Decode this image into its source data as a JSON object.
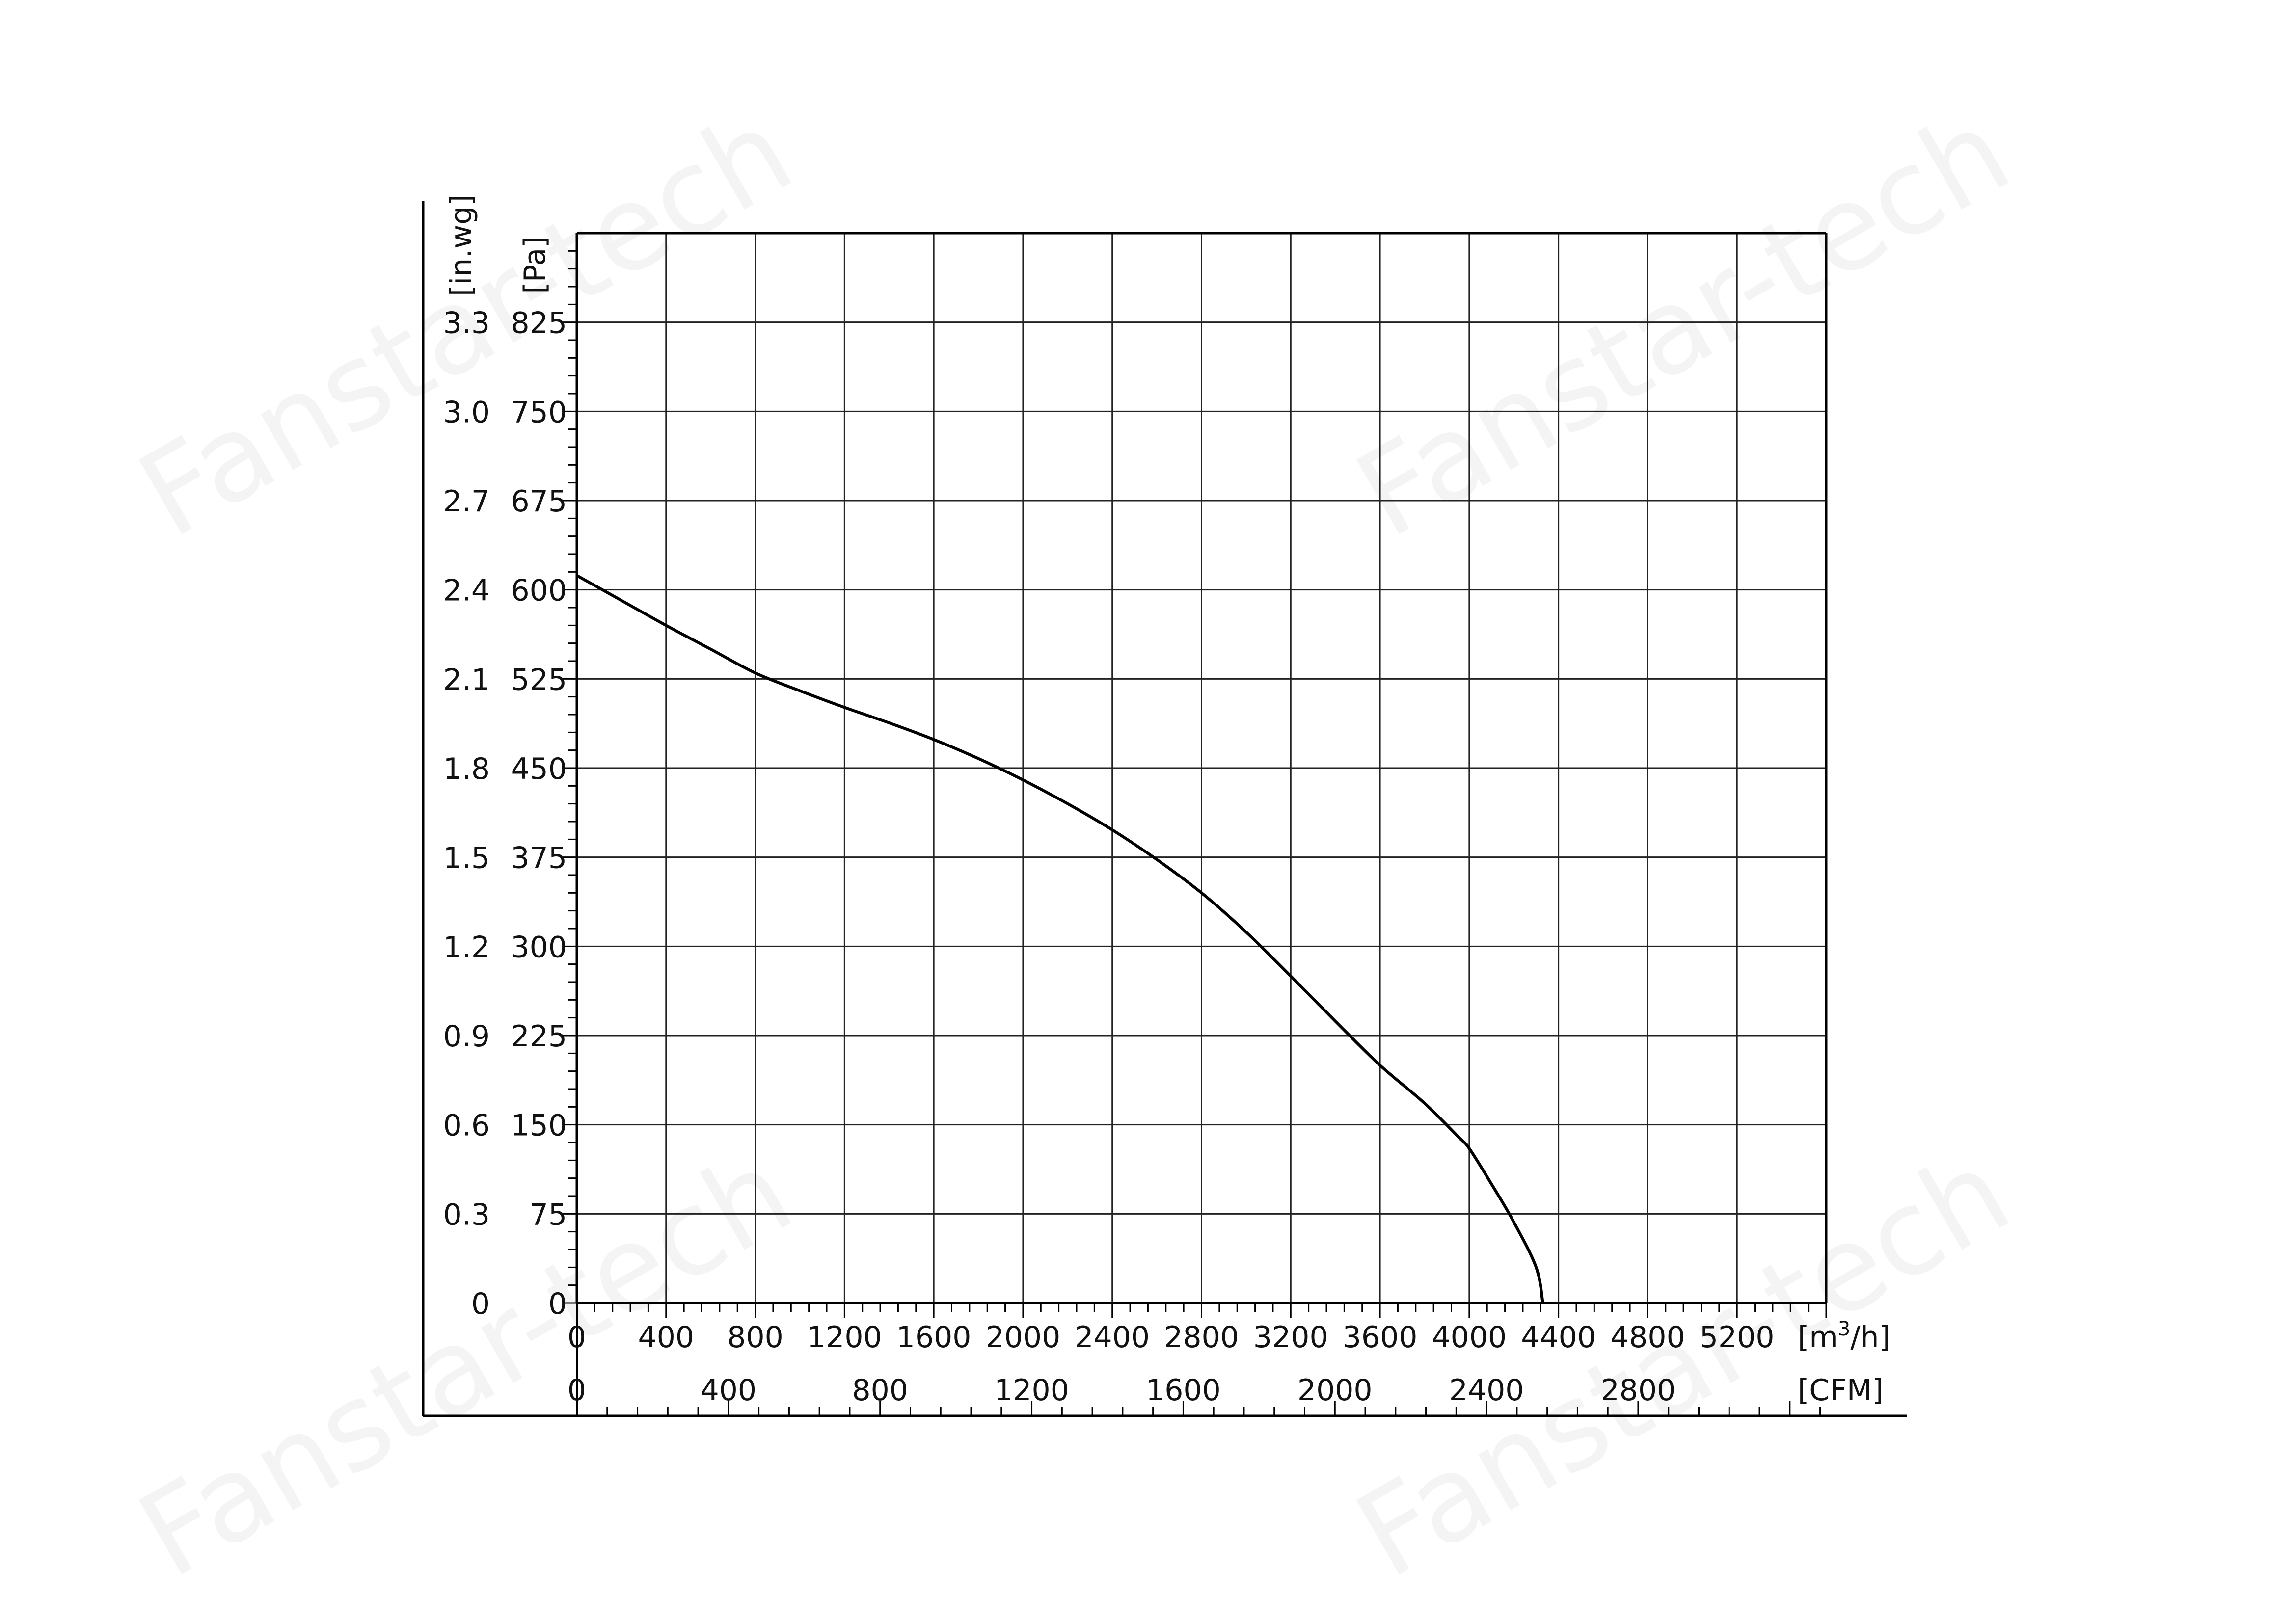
{
  "chart_data": {
    "type": "line",
    "title": "",
    "watermark": "Fanstar-tech",
    "x_axis_primary": {
      "unit": "[m³/h]",
      "unit_base": "[m",
      "unit_sup": "3",
      "unit_tail": "/h]",
      "range": [
        0,
        5600
      ],
      "ticks": [
        0,
        400,
        800,
        1200,
        1600,
        2000,
        2400,
        2800,
        3200,
        3600,
        4000,
        4400,
        4800,
        5200
      ],
      "tick_labels": [
        "0",
        "400",
        "800",
        "1200",
        "1600",
        "2000",
        "2400",
        "2800",
        "3200",
        "3600",
        "4000",
        "4400",
        "4800",
        "5200"
      ]
    },
    "x_axis_secondary": {
      "unit": "[CFM]",
      "ticks": [
        0,
        400,
        800,
        1200,
        1600,
        2000,
        2400,
        2800
      ],
      "tick_labels": [
        "0",
        "400",
        "800",
        "1200",
        "1600",
        "2000",
        "2400",
        "2800"
      ],
      "m3h_per_cfm": 1.699
    },
    "y_axis_primary": {
      "unit": "[Pa]",
      "range": [
        0,
        900
      ],
      "ticks": [
        0,
        75,
        150,
        225,
        300,
        375,
        450,
        525,
        600,
        675,
        750,
        825
      ],
      "tick_labels": [
        "0",
        "75",
        "150",
        "225",
        "300",
        "375",
        "450",
        "525",
        "600",
        "675",
        "750",
        "825"
      ]
    },
    "y_axis_secondary": {
      "unit": "[in.wg]",
      "tick_labels": [
        "0",
        "0.3",
        "0.6",
        "0.9",
        "1.2",
        "1.5",
        "1.8",
        "2.1",
        "2.4",
        "2.7",
        "3.0",
        "3.3"
      ]
    },
    "grid": true,
    "series": [
      {
        "color": "#000000",
        "x": [
          0,
          200,
          400,
          600,
          800,
          1000,
          1200,
          1400,
          1600,
          1800,
          2000,
          2200,
          2400,
          2600,
          2800,
          3000,
          3200,
          3400,
          3600,
          3800,
          3950,
          4000,
          4100,
          4200,
          4300,
          4330
        ],
        "y": [
          612,
          591,
          570,
          550,
          530,
          515,
          501,
          488,
          474,
          458,
          440,
          420,
          398,
          373,
          345,
          312,
          275,
          237,
          200,
          168,
          140,
          130,
          100,
          68,
          30,
          0
        ]
      }
    ]
  }
}
